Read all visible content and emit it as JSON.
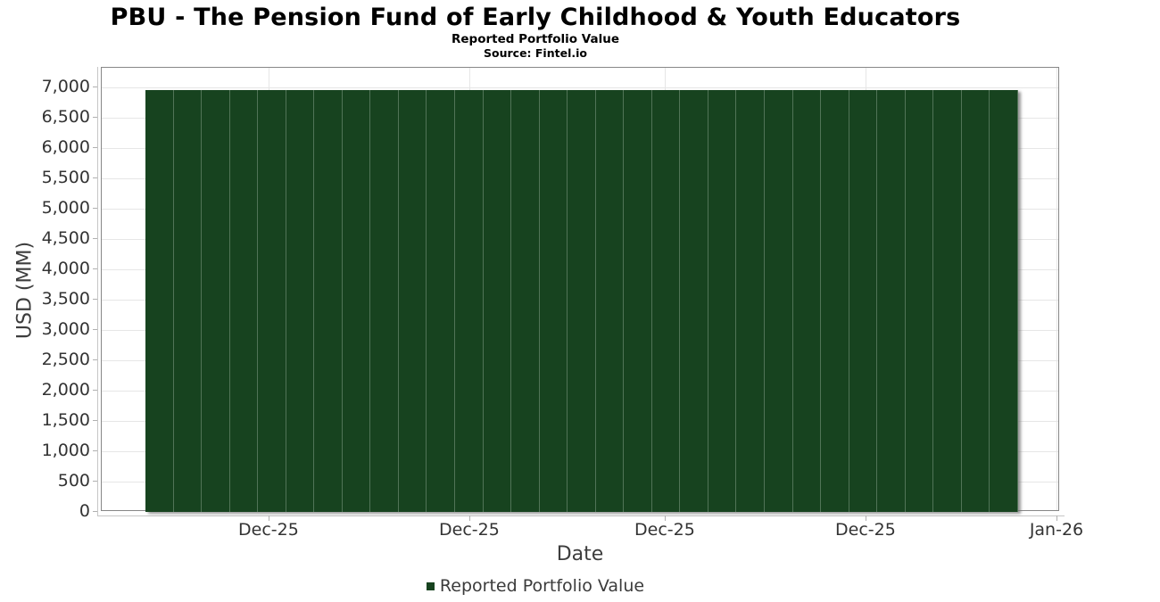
{
  "header": {
    "title": "PBU - The Pension Fund of Early Childhood & Youth Educators",
    "subtitle": "Reported Portfolio Value",
    "source": "Source: Fintel.io"
  },
  "chart_data": {
    "type": "bar",
    "title": "PBU - The Pension Fund of Early Childhood & Youth Educators",
    "subtitle": "Reported Portfolio Value",
    "source": "Source: Fintel.io",
    "xlabel": "Date",
    "ylabel": "USD (MM)",
    "ylim": [
      0,
      7324
    ],
    "grid": true,
    "yticks": [
      0,
      500,
      1000,
      1500,
      2000,
      2500,
      3000,
      3500,
      4000,
      4500,
      5000,
      5500,
      6000,
      6500,
      7000
    ],
    "ytick_labels": [
      "0",
      "500",
      "1,000",
      "1,500",
      "2,000",
      "2,500",
      "3,000",
      "3,500",
      "4,000",
      "4,500",
      "5,000",
      "5,500",
      "6,000",
      "6,500",
      "7,000"
    ],
    "xticks": [
      {
        "label": "Dec-25",
        "pos": 0.175
      },
      {
        "label": "Dec-25",
        "pos": 0.3845
      },
      {
        "label": "Dec-25",
        "pos": 0.5884
      },
      {
        "label": "Dec-25",
        "pos": 0.7979
      },
      {
        "label": "Jan-26",
        "pos": 0.9972
      }
    ],
    "bar_region": {
      "start_frac": 0.0456,
      "end_frac": 0.9562
    },
    "series": [
      {
        "name": "Reported Portfolio Value",
        "color": "#17431f",
        "values": [
          6950,
          6950,
          6950,
          6950,
          6950,
          6950,
          6950,
          6950,
          6950,
          6950,
          6950,
          6950,
          6950,
          6950,
          6950,
          6950,
          6950,
          6950,
          6950,
          6950,
          6950,
          6950,
          6950,
          6950,
          6950,
          6950,
          6950,
          6950,
          6950,
          6950,
          6950
        ]
      }
    ],
    "legend": {
      "position": "bottom",
      "label": "Reported Portfolio Value",
      "swatch_color": "#17431f"
    },
    "colors": {
      "bar": "#17431f",
      "grid": "#e6e6e6",
      "plot_border": "#878787"
    }
  }
}
